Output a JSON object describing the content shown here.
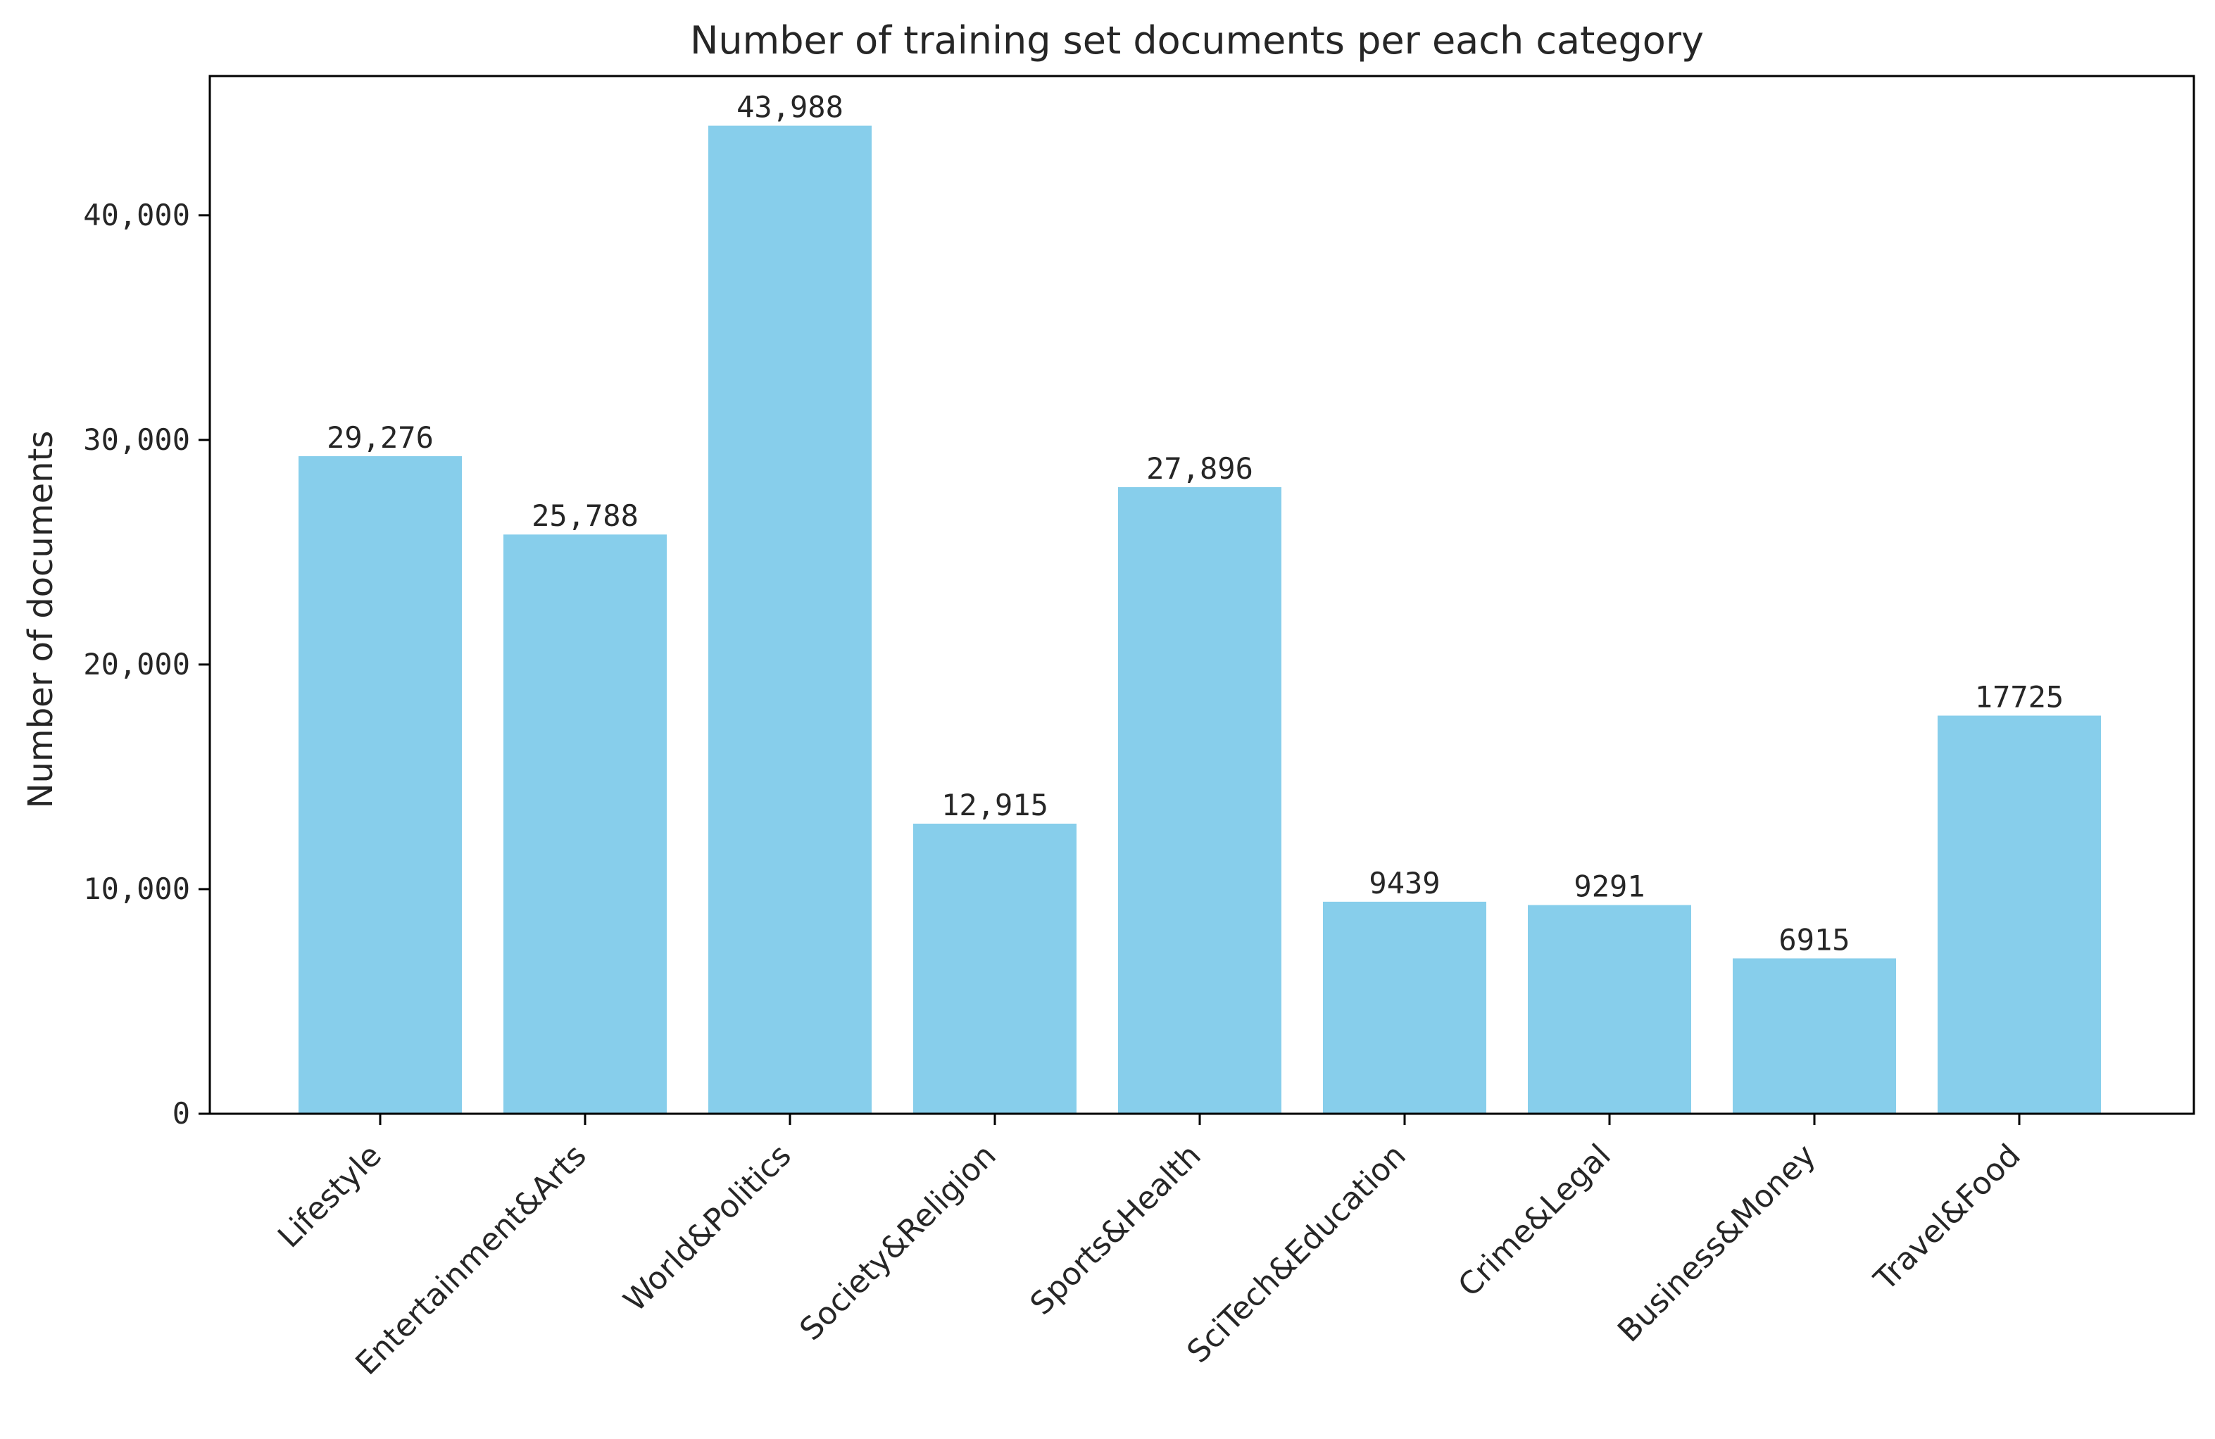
{
  "chart_data": {
    "type": "bar",
    "title": "Number of training set documents per each category",
    "xlabel": "",
    "ylabel": "Number of documents",
    "categories": [
      "Lifestyle",
      "Entertainment&Arts",
      "World&Politics",
      "Society&Religion",
      "Sports&Health",
      "SciTech&Education",
      "Crime&Legal",
      "Business&Money",
      "Travel&Food"
    ],
    "values": [
      29276,
      25788,
      43988,
      12915,
      27896,
      9439,
      9291,
      6915,
      17725
    ],
    "data_labels": [
      "29,276",
      "25,788",
      "43,988",
      "12,915",
      "27,896",
      "9439",
      "9291",
      "6915",
      "17725"
    ],
    "ylim": [
      0,
      46200
    ],
    "yticks": [
      0,
      10000,
      20000,
      30000,
      40000
    ],
    "ytick_labels": [
      "0",
      "10,000",
      "20,000",
      "30,000",
      "40,000"
    ],
    "bar_color": "#87CEEB",
    "grid": false,
    "legend": "none"
  }
}
